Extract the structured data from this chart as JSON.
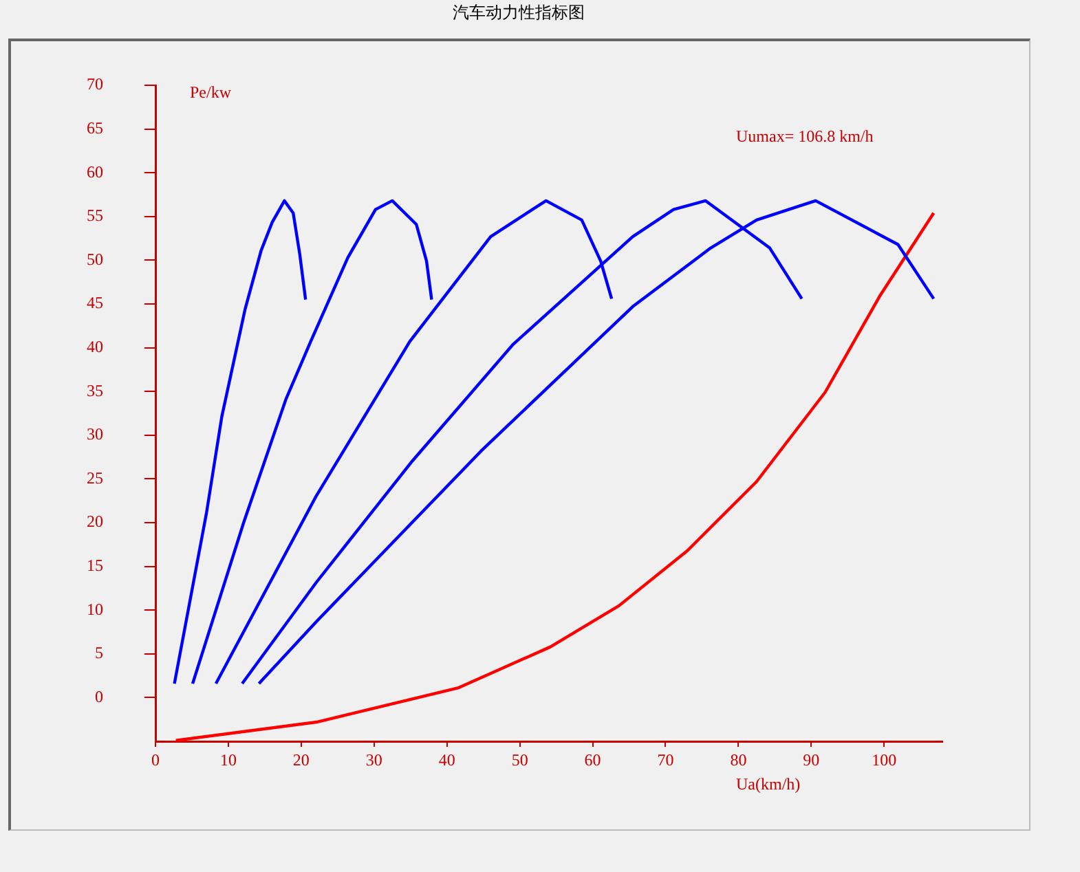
{
  "chart_data": {
    "type": "line",
    "title": "汽车动力性指标图",
    "xlabel": "Ua(km/h)",
    "ylabel": "Pe/kw",
    "annotations": [
      "Uumax= 106.8 km/h"
    ],
    "xlim": [
      0,
      108
    ],
    "ylim": [
      -5,
      70
    ],
    "xticks": [
      {
        "value": 0,
        "label": "0"
      },
      10,
      20,
      30,
      40,
      50,
      60,
      70,
      80,
      90,
      100
    ],
    "yticks": [
      0,
      5,
      10,
      15,
      20,
      25,
      30,
      35,
      40,
      45,
      50,
      55,
      60,
      65,
      70
    ],
    "grid": false,
    "legend": false,
    "marker": "none",
    "line_style": "solid",
    "series": [
      {
        "color": "#0000ff",
        "x": [
          2.6,
          7.0,
          9.1,
          12.3,
          14.5,
          16.0,
          17.7,
          18.9,
          19.8,
          20.6
        ],
        "values": [
          1.6,
          21.1,
          32.1,
          44.4,
          51.1,
          54.3,
          56.8,
          55.4,
          50.7,
          45.5
        ]
      },
      {
        "color": "#0000ff",
        "x": [
          5.1,
          12.1,
          17.9,
          21.3,
          26.4,
          30.2,
          32.5,
          35.8,
          37.2,
          37.9
        ],
        "values": [
          1.6,
          20.0,
          34.1,
          40.7,
          50.3,
          55.8,
          56.8,
          54.1,
          49.9,
          45.5
        ]
      },
      {
        "color": "#0000ff",
        "x": [
          8.3,
          22.1,
          34.9,
          46.0,
          53.6,
          58.5,
          61.1,
          62.6
        ],
        "values": [
          1.6,
          23.1,
          40.7,
          52.7,
          56.8,
          54.6,
          49.9,
          45.6
        ]
      },
      {
        "color": "#0000ff",
        "x": [
          11.9,
          22.1,
          35.3,
          49.1,
          65.5,
          71.1,
          75.5,
          84.3,
          88.7
        ],
        "values": [
          1.6,
          13.2,
          27.1,
          40.4,
          52.7,
          55.8,
          56.8,
          51.4,
          45.6
        ]
      },
      {
        "color": "#0000ff",
        "x": [
          14.2,
          22.1,
          44.7,
          65.5,
          76.2,
          82.5,
          90.6,
          101.9,
          106.8
        ],
        "values": [
          1.6,
          8.7,
          28.2,
          44.7,
          51.4,
          54.6,
          56.8,
          51.8,
          45.6
        ]
      },
      {
        "color": "#ff0000",
        "x": [
          2.8,
          22.1,
          41.5,
          54.2,
          63.6,
          73.0,
          82.5,
          91.9,
          99.4,
          106.8
        ],
        "values": [
          -4.9,
          -2.8,
          1.1,
          5.8,
          10.5,
          16.8,
          24.7,
          34.9,
          45.9,
          55.4
        ]
      }
    ]
  }
}
